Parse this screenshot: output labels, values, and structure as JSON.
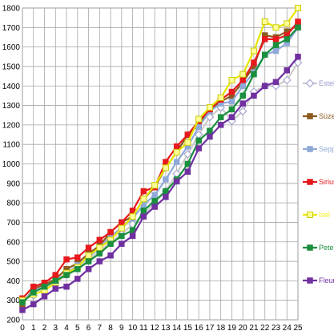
{
  "chart_data": {
    "type": "line",
    "x": [
      0,
      1,
      2,
      3,
      4,
      5,
      6,
      7,
      8,
      9,
      10,
      11,
      12,
      13,
      14,
      15,
      16,
      17,
      18,
      19,
      20,
      21,
      22,
      23,
      24,
      25
    ],
    "xlim": [
      0,
      25
    ],
    "ylim": [
      200,
      1800
    ],
    "yticks": [
      200,
      300,
      400,
      500,
      600,
      700,
      800,
      900,
      1000,
      1100,
      1200,
      1300,
      1400,
      1500,
      1600,
      1700,
      1800
    ],
    "grid": true,
    "legend_position": "right",
    "series": [
      {
        "name": "Estel",
        "color": "#9999cc",
        "marker": "diamond-open",
        "line_color": "#cccccc",
        "values": [
          300,
          325,
          360,
          390,
          430,
          470,
          510,
          550,
          600,
          640,
          690,
          740,
          800,
          860,
          950,
          1050,
          1150,
          1240,
          1290,
          1220,
          1270,
          1370,
          1400,
          1400,
          1430,
          1520
        ]
      },
      {
        "name": "Süzel",
        "color": "#8c5a1e",
        "marker": "square",
        "values": [
          280,
          360,
          380,
          410,
          460,
          490,
          540,
          580,
          650,
          700,
          730,
          820,
          880,
          980,
          1060,
          1150,
          1200,
          1280,
          1320,
          1350,
          1420,
          1500,
          1660,
          1650,
          1680,
          1710
        ]
      },
      {
        "name": "Sepp",
        "color": "#8fa9d8",
        "marker": "square",
        "values": [
          290,
          350,
          370,
          400,
          440,
          480,
          520,
          570,
          630,
          670,
          720,
          790,
          840,
          920,
          1010,
          1090,
          1190,
          1270,
          1310,
          1320,
          1400,
          1470,
          1560,
          1580,
          1620,
          1700
        ]
      },
      {
        "name": "Sirius",
        "color": "#e8191d",
        "marker": "square",
        "values": [
          310,
          370,
          390,
          430,
          510,
          520,
          570,
          610,
          650,
          700,
          760,
          860,
          880,
          1010,
          1090,
          1150,
          1220,
          1280,
          1330,
          1370,
          1430,
          1520,
          1640,
          1640,
          1660,
          1730
        ]
      },
      {
        "name": "Isel",
        "color": "#f0f020",
        "marker": "square-open",
        "line_color": "#e6e600",
        "values": [
          300,
          330,
          350,
          390,
          440,
          470,
          530,
          570,
          610,
          670,
          730,
          820,
          890,
          980,
          1060,
          1110,
          1230,
          1290,
          1340,
          1430,
          1460,
          1580,
          1730,
          1700,
          1720,
          1800
        ]
      },
      {
        "name": "Peter",
        "color": "#1a8f3e",
        "marker": "square",
        "values": [
          290,
          340,
          370,
          400,
          430,
          460,
          500,
          540,
          590,
          630,
          660,
          760,
          810,
          860,
          920,
          1000,
          1120,
          1170,
          1240,
          1280,
          1350,
          1460,
          1560,
          1610,
          1640,
          1700
        ]
      },
      {
        "name": "Fleur",
        "color": "#7030a0",
        "marker": "square",
        "values": [
          250,
          280,
          320,
          360,
          370,
          410,
          460,
          500,
          530,
          590,
          630,
          730,
          780,
          830,
          910,
          960,
          1080,
          1140,
          1200,
          1240,
          1310,
          1350,
          1400,
          1420,
          1480,
          1550
        ]
      }
    ]
  }
}
